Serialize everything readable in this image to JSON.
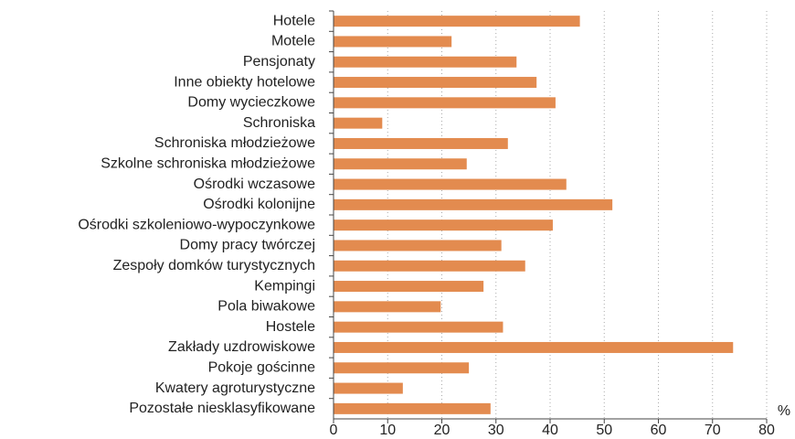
{
  "chart_data": {
    "type": "bar",
    "orientation": "horizontal",
    "x_label": "%",
    "categories": [
      "Hotele",
      "Motele",
      "Pensjonaty",
      "Inne obiekty hotelowe",
      "Domy wycieczkowe",
      "Schroniska",
      "Schroniska młodzieżowe",
      "Szkolne schroniska młodzieżowe",
      "Ośrodki wczasowe",
      "Ośrodki kolonijne",
      "Ośrodki szkoleniowo-wypoczynkowe",
      "Domy pracy twórczej",
      "Zespoły domków turystycznych",
      "Kempingi",
      "Pola biwakowe",
      "Hostele",
      "Zakłady uzdrowiskowe",
      "Pokoje gościnne",
      "Kwatery agroturystyczne",
      "Pozostałe niesklasyfikowane"
    ],
    "values": [
      45.5,
      21.8,
      33.8,
      37.5,
      41,
      9,
      32.2,
      24.6,
      43,
      51.5,
      40.5,
      31,
      35.4,
      27.7,
      19.8,
      31.3,
      73.8,
      25,
      12.8,
      29
    ],
    "color": "#e38b4f",
    "xlim": [
      0,
      80
    ],
    "xticks": [
      0,
      10,
      20,
      30,
      40,
      50,
      60,
      70,
      80
    ],
    "grid": true
  }
}
